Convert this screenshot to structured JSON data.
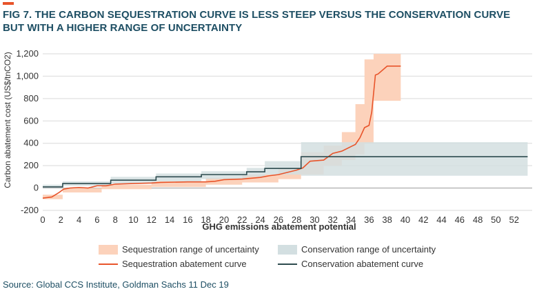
{
  "title": "FIG 7. THE CARBON SEQUESTRATION CURVE IS LESS STEEP VERSUS THE CONSERVATION CURVE BUT WITH A HIGHER RANGE OF UNCERTAINTY",
  "source": "Source: Global CCS Institute, Goldman Sachs 11 Dec 19",
  "colors": {
    "accent": "#e8542a",
    "title": "#1d4e63",
    "seq_band": "#fcd2bb",
    "seq_line": "#e8542a",
    "cons_band": "#d3dfe1",
    "cons_line": "#2c4a4e"
  },
  "chart_data": {
    "type": "area",
    "title": "",
    "xlabel": "GHG emissions abatement potential",
    "ylabel": "Carbon abatement cost (US$/tnCO2)",
    "xlim": [
      0,
      54
    ],
    "ylim": [
      -200,
      1200
    ],
    "x_ticks": [
      0,
      2,
      4,
      6,
      8,
      10,
      12,
      14,
      16,
      18,
      20,
      22,
      24,
      26,
      28,
      30,
      32,
      34,
      36,
      38,
      40,
      42,
      44,
      46,
      48,
      50,
      52
    ],
    "x_tick_labels": [
      "0",
      "2",
      "4",
      "6",
      "8",
      "10",
      "12",
      "14",
      "16",
      "18",
      "20",
      "22",
      "24",
      "26",
      "28",
      "30",
      "32",
      "34",
      "36",
      "38",
      "40",
      "42",
      "44",
      "46",
      "48",
      "50",
      "52"
    ],
    "y_ticks": [
      -200,
      0,
      200,
      400,
      600,
      800,
      1000,
      1200
    ],
    "y_tick_labels": [
      "-200",
      "0",
      "200",
      "400",
      "600",
      "800",
      "1,000",
      "1,200"
    ],
    "grid": "horizontal",
    "legend_position": "bottom",
    "series": [
      {
        "name": "Sequestration range of uncertainty",
        "kind": "band",
        "color": "#fcd2bb",
        "x": [
          0,
          2.2,
          2.2,
          6.5,
          6.5,
          12,
          12,
          18,
          18,
          22,
          22,
          26,
          26,
          28.5,
          28.5,
          31,
          31,
          33,
          33,
          34.5,
          34.5,
          35.5,
          35.5,
          36.5,
          36.5,
          39.5
        ],
        "low": [
          -100,
          -100,
          -40,
          -40,
          -10,
          -10,
          10,
          10,
          30,
          30,
          50,
          50,
          80,
          80,
          120,
          120,
          200,
          200,
          250,
          250,
          300,
          300,
          400,
          400,
          780,
          780
        ],
        "high": [
          -60,
          -60,
          0,
          0,
          30,
          30,
          60,
          60,
          90,
          90,
          120,
          120,
          180,
          180,
          320,
          320,
          380,
          380,
          500,
          500,
          750,
          750,
          1150,
          1150,
          1200,
          1200
        ]
      },
      {
        "name": "Conservation range of uncertainty",
        "kind": "band",
        "color": "#d3dfe1",
        "x": [
          0,
          2.2,
          2.2,
          7.5,
          7.5,
          12.5,
          12.5,
          17.5,
          17.5,
          22.5,
          22.5,
          24.5,
          24.5,
          28.5,
          28.5,
          53.5
        ],
        "low": [
          0,
          0,
          20,
          20,
          40,
          40,
          60,
          60,
          80,
          80,
          100,
          100,
          120,
          120,
          110,
          110
        ],
        "high": [
          30,
          30,
          60,
          60,
          100,
          100,
          130,
          130,
          150,
          150,
          180,
          180,
          240,
          240,
          410,
          410
        ]
      },
      {
        "name": "Sequestration abatement curve",
        "kind": "line",
        "color": "#e8542a",
        "x": [
          0,
          1,
          1.8,
          2.3,
          3,
          4,
          5,
          6,
          7,
          8,
          10,
          12,
          13,
          16,
          18,
          19,
          20,
          22,
          24,
          25,
          26,
          27,
          28,
          28.7,
          29.5,
          31,
          32,
          33,
          34,
          34.5,
          35,
          35.5,
          36,
          36.3,
          36.7,
          37,
          38,
          39.5
        ],
        "y": [
          -90,
          -80,
          -40,
          -10,
          0,
          5,
          0,
          20,
          20,
          35,
          40,
          45,
          50,
          55,
          55,
          60,
          75,
          80,
          95,
          110,
          120,
          140,
          160,
          180,
          240,
          250,
          310,
          330,
          370,
          390,
          450,
          540,
          560,
          680,
          1010,
          1020,
          1090,
          1090
        ]
      },
      {
        "name": "Conservation abatement curve",
        "kind": "line",
        "color": "#2c4a4e",
        "x": [
          0,
          2.2,
          2.2,
          7.5,
          7.5,
          12.5,
          12.5,
          17.5,
          17.5,
          22.5,
          22.5,
          24.5,
          24.5,
          28.5,
          28.5,
          53.5
        ],
        "y": [
          10,
          10,
          40,
          40,
          70,
          70,
          100,
          100,
          120,
          120,
          145,
          145,
          175,
          175,
          280,
          280
        ]
      }
    ]
  }
}
